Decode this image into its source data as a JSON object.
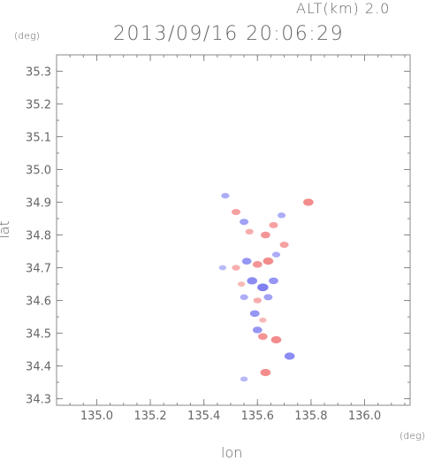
{
  "header": {
    "altitude": "ALT(km)  2.0",
    "timestamp": "2013/09/16 20:06:29"
  },
  "chart_data": {
    "type": "heatmap",
    "title": "2013/09/16 20:06:29",
    "xlabel": "lon",
    "ylabel": "lat",
    "x_unit": "(deg)",
    "y_unit": "(deg)",
    "xlim": [
      134.85,
      136.17
    ],
    "ylim": [
      34.28,
      35.35
    ],
    "x_ticks": [
      135.0,
      135.2,
      135.4,
      135.6,
      135.8,
      136.0
    ],
    "x_tick_labels": [
      "135.0",
      "135.2",
      "135.4",
      "135.6",
      "135.8",
      "136.0"
    ],
    "y_ticks": [
      34.3,
      34.4,
      34.5,
      34.6,
      34.7,
      34.8,
      34.9,
      35.0,
      35.1,
      35.2,
      35.3
    ],
    "y_tick_labels": [
      "34.3",
      "34.4",
      "34.5",
      "34.6",
      "34.7",
      "34.8",
      "34.9",
      "35.0",
      "35.1",
      "35.2",
      "35.3"
    ],
    "colors": {
      "negative": "#6a6af0",
      "positive": "#f06a6a",
      "axis": "#888888"
    },
    "echo_cells": [
      {
        "lon": 135.48,
        "lat": 34.92,
        "v": -0.4
      },
      {
        "lon": 135.52,
        "lat": 34.87,
        "v": 0.5
      },
      {
        "lon": 135.55,
        "lat": 34.84,
        "v": -0.5
      },
      {
        "lon": 135.57,
        "lat": 34.81,
        "v": 0.4
      },
      {
        "lon": 135.63,
        "lat": 34.8,
        "v": 0.6
      },
      {
        "lon": 135.66,
        "lat": 34.83,
        "v": 0.5
      },
      {
        "lon": 135.69,
        "lat": 34.86,
        "v": -0.4
      },
      {
        "lon": 135.7,
        "lat": 34.77,
        "v": 0.5
      },
      {
        "lon": 135.79,
        "lat": 34.9,
        "v": 0.7
      },
      {
        "lon": 135.47,
        "lat": 34.7,
        "v": -0.3
      },
      {
        "lon": 135.52,
        "lat": 34.7,
        "v": 0.4
      },
      {
        "lon": 135.56,
        "lat": 34.72,
        "v": -0.6
      },
      {
        "lon": 135.6,
        "lat": 34.71,
        "v": 0.6
      },
      {
        "lon": 135.64,
        "lat": 34.72,
        "v": 0.7
      },
      {
        "lon": 135.67,
        "lat": 34.74,
        "v": -0.4
      },
      {
        "lon": 135.54,
        "lat": 34.65,
        "v": 0.3
      },
      {
        "lon": 135.58,
        "lat": 34.66,
        "v": -0.7
      },
      {
        "lon": 135.62,
        "lat": 34.64,
        "v": -0.8
      },
      {
        "lon": 135.66,
        "lat": 34.66,
        "v": -0.6
      },
      {
        "lon": 135.55,
        "lat": 34.61,
        "v": -0.4
      },
      {
        "lon": 135.6,
        "lat": 34.6,
        "v": 0.4
      },
      {
        "lon": 135.64,
        "lat": 34.61,
        "v": -0.5
      },
      {
        "lon": 135.59,
        "lat": 34.56,
        "v": -0.6
      },
      {
        "lon": 135.62,
        "lat": 34.54,
        "v": 0.3
      },
      {
        "lon": 135.6,
        "lat": 34.51,
        "v": -0.6
      },
      {
        "lon": 135.62,
        "lat": 34.49,
        "v": 0.6
      },
      {
        "lon": 135.67,
        "lat": 34.48,
        "v": 0.7
      },
      {
        "lon": 135.72,
        "lat": 34.43,
        "v": -0.7
      },
      {
        "lon": 135.63,
        "lat": 34.38,
        "v": 0.7
      },
      {
        "lon": 135.55,
        "lat": 34.36,
        "v": -0.3
      }
    ]
  }
}
